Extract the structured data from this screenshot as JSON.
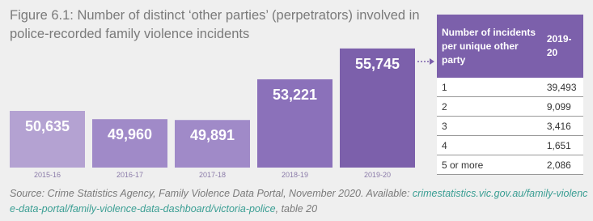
{
  "chart_data": {
    "type": "bar",
    "title": "Figure 6.1: Number of distinct ‘other parties’ (perpetrators) involved in police-recorded family violence incidents",
    "categories": [
      "2015-16",
      "2016-17",
      "2017-18",
      "2018-19",
      "2019-20"
    ],
    "values": [
      50635,
      49960,
      49891,
      53221,
      55745
    ],
    "value_labels": [
      "50,635",
      "49,960",
      "49,891",
      "53,221",
      "55,745"
    ],
    "colors": [
      "#b4a2d2",
      "#a08ac8",
      "#a08ac8",
      "#8b71ba",
      "#7c60ab"
    ],
    "ylim": [
      46000,
      56000
    ]
  },
  "table": {
    "columns": [
      "Number of incidents per unique other party",
      "2019-20"
    ],
    "rows": [
      [
        "1",
        "39,493"
      ],
      [
        "2",
        "9,099"
      ],
      [
        "3",
        "3,416"
      ],
      [
        "4",
        "1,651"
      ],
      [
        "5 or more",
        "2,086"
      ]
    ]
  },
  "source": {
    "text": "Source: Crime Statistics Agency, Family Violence Data Portal, November 2020. Available: ",
    "link": "crimestatistics.vic.gov.au/family-violence-data-portal/family-violence-data-dashboard/victoria-police",
    "suffix": ", table 20"
  }
}
